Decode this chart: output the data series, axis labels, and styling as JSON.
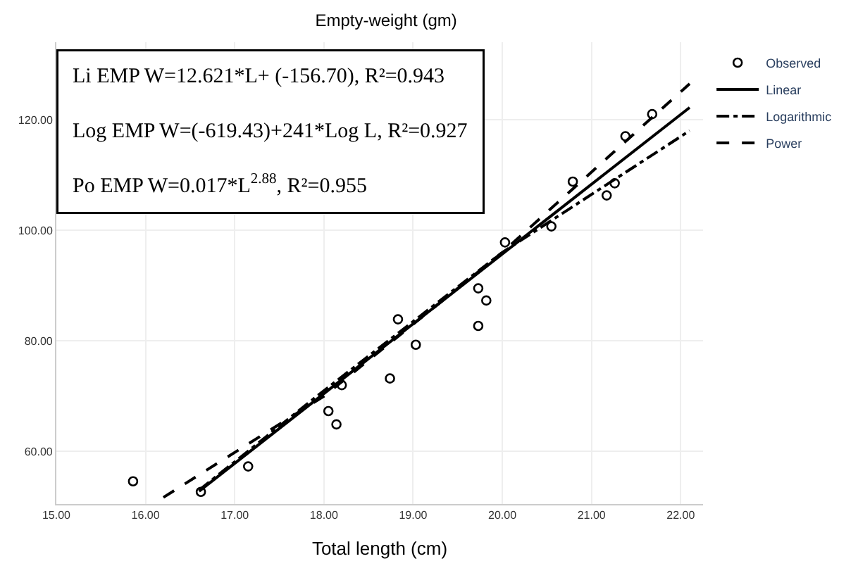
{
  "chart_data": {
    "type": "scatter",
    "title": "Empty-weight (gm)",
    "xlabel": "Total length (cm)",
    "xlim": [
      15,
      22.25
    ],
    "ylim": [
      50.5,
      134
    ],
    "xticks": [
      {
        "value": 15,
        "label": "15.00"
      },
      {
        "value": 16,
        "label": "16.00"
      },
      {
        "value": 17,
        "label": "17.00"
      },
      {
        "value": 18,
        "label": "18.00"
      },
      {
        "value": 19,
        "label": "19.00"
      },
      {
        "value": 20,
        "label": "20.00"
      },
      {
        "value": 21,
        "label": "21.00"
      },
      {
        "value": 22,
        "label": "22.00"
      }
    ],
    "yticks": [
      {
        "value": 60,
        "label": "60.00"
      },
      {
        "value": 80,
        "label": "80.00"
      },
      {
        "value": 100,
        "label": "100.00"
      },
      {
        "value": 120,
        "label": "120.00"
      }
    ],
    "grid": true,
    "legend": "top right",
    "series": [
      {
        "name": "Observed",
        "marker": "circle",
        "color": "#000000",
        "x": [
          15.86,
          16.62,
          17.15,
          18.05,
          18.14,
          18.2,
          18.74,
          18.83,
          19.03,
          19.73,
          19.73,
          19.82,
          20.03,
          20.55,
          20.79,
          21.17,
          21.26,
          21.38,
          21.68
        ],
        "values": [
          54.6,
          52.7,
          57.3,
          67.3,
          64.9,
          72,
          73.2,
          83.9,
          79.3,
          89.5,
          82.7,
          87.3,
          97.8,
          100.7,
          108.8,
          106.3,
          108.5,
          117,
          121
        ]
      },
      {
        "name": "Linear",
        "type": "line",
        "line_style": "solid",
        "color": "#000000",
        "x": [
          16.6,
          22.1
        ],
        "values": [
          52.8,
          122.2
        ]
      },
      {
        "name": "Logarithmic",
        "type": "line",
        "line_style": "dashdot",
        "color": "#000000",
        "x": [
          16.6,
          18,
          20,
          22.1
        ],
        "values": [
          53,
          71,
          96,
          118
        ]
      },
      {
        "name": "Power",
        "type": "line",
        "line_style": "dashed",
        "color": "#000000",
        "x": [
          16.2,
          18,
          20,
          22.1
        ],
        "values": [
          51.7,
          70,
          96,
          126.5
        ]
      }
    ],
    "annotations": [
      "Li EMP W=12.621*L+ (-156.70), R²=0.943\nLog EMP W=(-619.43)+241*Log L, R²=0.927\nPo EMP W=0.017*L$^{2.88}$, R²=0.955"
    ]
  }
}
